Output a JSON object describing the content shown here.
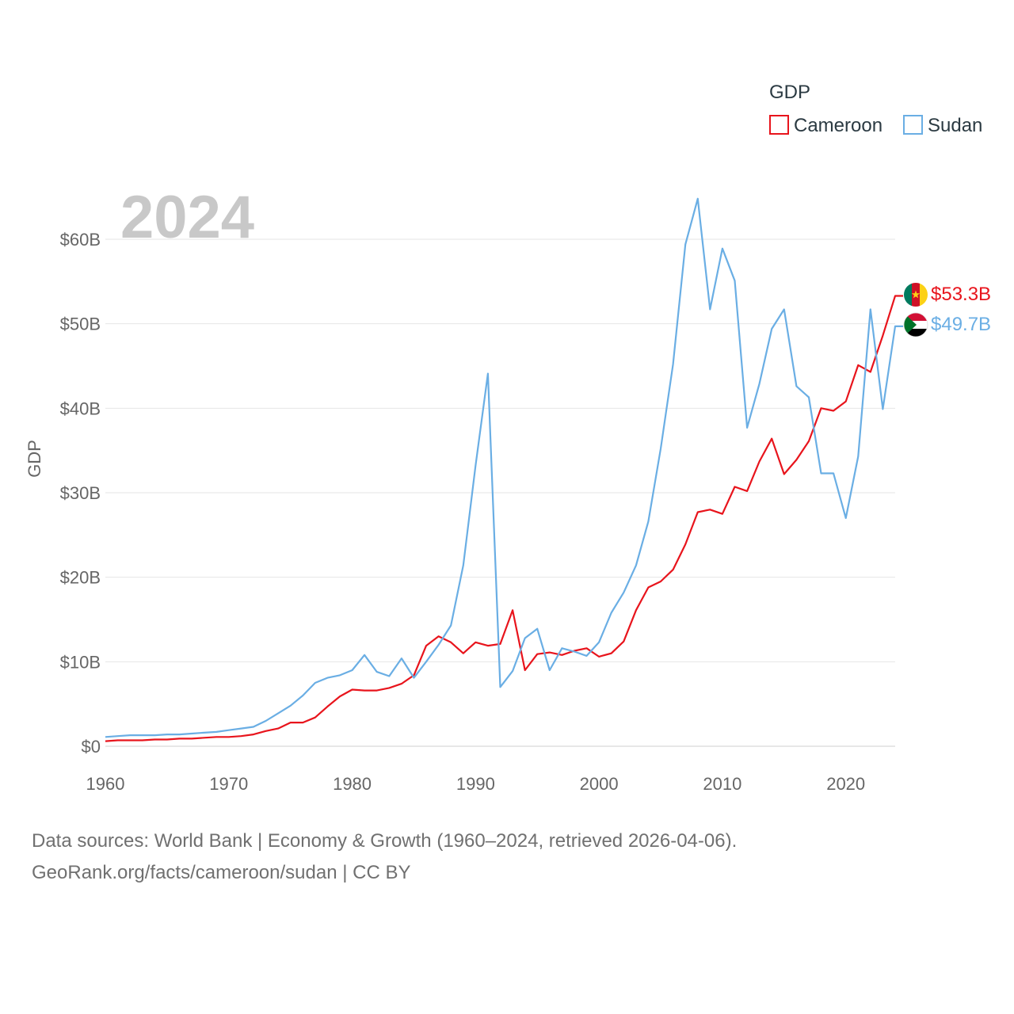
{
  "chart_data": {
    "type": "line",
    "title": "GDP",
    "current_year": "2024",
    "ylabel": "GDP",
    "xlabel": "",
    "xlim": [
      1960,
      2024
    ],
    "ylim": [
      0,
      60
    ],
    "y_unit": "billions USD",
    "x_ticks": [
      1960,
      1970,
      1980,
      1990,
      2000,
      2010,
      2020
    ],
    "y_ticks": [
      0,
      10,
      20,
      30,
      40,
      50,
      60
    ],
    "y_tick_labels": [
      "$0",
      "$10B",
      "$20B",
      "$30B",
      "$40B",
      "$50B",
      "$60B"
    ],
    "legend_title": "GDP",
    "legend_position": "top-right",
    "x": [
      1960,
      1961,
      1962,
      1963,
      1964,
      1965,
      1966,
      1967,
      1968,
      1969,
      1970,
      1971,
      1972,
      1973,
      1974,
      1975,
      1976,
      1977,
      1978,
      1979,
      1980,
      1981,
      1982,
      1983,
      1984,
      1985,
      1986,
      1987,
      1988,
      1989,
      1990,
      1991,
      1992,
      1993,
      1994,
      1995,
      1996,
      1997,
      1998,
      1999,
      2000,
      2001,
      2002,
      2003,
      2004,
      2005,
      2006,
      2007,
      2008,
      2009,
      2010,
      2011,
      2012,
      2013,
      2014,
      2015,
      2016,
      2017,
      2018,
      2019,
      2020,
      2021,
      2022,
      2023,
      2024
    ],
    "series": [
      {
        "name": "Cameroon",
        "color": "#e8141c",
        "end_label": "$53.3B",
        "values": [
          0.6,
          0.7,
          0.7,
          0.7,
          0.8,
          0.8,
          0.9,
          0.9,
          1.0,
          1.1,
          1.1,
          1.2,
          1.4,
          1.8,
          2.1,
          2.8,
          2.8,
          3.4,
          4.7,
          5.9,
          6.7,
          6.6,
          6.6,
          6.9,
          7.4,
          8.4,
          11.9,
          13.0,
          12.3,
          11.0,
          12.3,
          11.9,
          12.1,
          16.1,
          9.0,
          10.9,
          11.1,
          10.8,
          11.3,
          11.6,
          10.6,
          11.0,
          12.4,
          16.1,
          18.8,
          19.5,
          20.9,
          23.9,
          27.7,
          28.0,
          27.5,
          30.7,
          30.2,
          33.7,
          36.4,
          32.2,
          33.9,
          36.1,
          40.0,
          39.7,
          40.8,
          45.1,
          44.3,
          48.6,
          53.3
        ]
      },
      {
        "name": "Sudan",
        "color": "#6aaee4",
        "end_label": "$49.7B",
        "values": [
          1.1,
          1.2,
          1.3,
          1.3,
          1.3,
          1.4,
          1.4,
          1.5,
          1.6,
          1.7,
          1.9,
          2.1,
          2.3,
          3.0,
          3.9,
          4.8,
          6.0,
          7.5,
          8.1,
          8.4,
          9.0,
          10.8,
          8.8,
          8.3,
          10.4,
          8.1,
          10.0,
          12.0,
          14.3,
          21.4,
          33.2,
          44.1,
          7.0,
          8.9,
          12.8,
          13.9,
          9.0,
          11.6,
          11.2,
          10.7,
          12.3,
          15.8,
          18.2,
          21.4,
          26.6,
          35.2,
          45.2,
          59.4,
          64.8,
          51.7,
          58.9,
          55.1,
          37.7,
          42.9,
          49.4,
          51.7,
          42.6,
          41.3,
          32.3,
          32.3,
          27.0,
          34.3,
          51.7,
          39.9,
          49.7
        ]
      }
    ]
  },
  "legend": {
    "title": "GDP",
    "items": [
      "Cameroon",
      "Sudan"
    ]
  },
  "footer": {
    "source_line": "Data sources: World Bank | Economy & Growth (1960–2024, retrieved 2026-04-06).",
    "credit_line": "GeoRank.org/facts/cameroon/sudan | CC BY"
  },
  "flags": {
    "cameroon": "cameroon-flag-icon",
    "sudan": "sudan-flag-icon"
  }
}
